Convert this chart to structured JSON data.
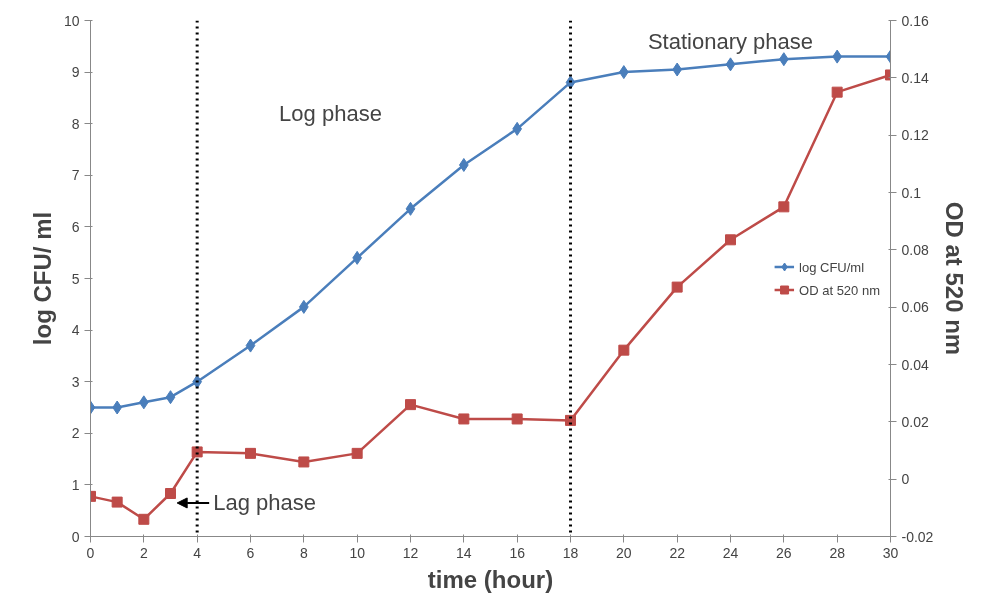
{
  "chart_data": {
    "type": "line",
    "xlabel": "time (hour)",
    "ylabel": "log CFU/ ml",
    "y2label": "OD at 520 nm",
    "x": [
      0,
      1,
      2,
      3,
      4,
      6,
      8,
      10,
      12,
      14,
      16,
      18,
      20,
      22,
      24,
      26,
      28,
      30
    ],
    "series": [
      {
        "name": "log CFU/ml",
        "color": "#4a7ebb",
        "marker": "diamond",
        "values": [
          2.5,
          2.5,
          2.6,
          2.7,
          3.0,
          3.7,
          4.45,
          5.4,
          6.35,
          7.2,
          7.9,
          8.8,
          9.0,
          9.05,
          9.15,
          9.25,
          9.3,
          9.3
        ]
      },
      {
        "name": "OD at 520 nm",
        "color": "#be4b48",
        "marker": "square",
        "axis": "y2",
        "values": [
          -0.006,
          -0.008,
          -0.014,
          -0.005,
          0.0095,
          0.009,
          0.006,
          0.009,
          0.026,
          0.021,
          0.021,
          0.0205,
          0.045,
          0.067,
          0.0835,
          0.095,
          0.135,
          0.141
        ]
      }
    ],
    "xlim": [
      0,
      30
    ],
    "xticks": [
      0,
      2,
      4,
      6,
      8,
      10,
      12,
      14,
      16,
      18,
      20,
      22,
      24,
      26,
      28,
      30
    ],
    "ylim": [
      0,
      10
    ],
    "yticks": [
      0,
      1,
      2,
      3,
      4,
      5,
      6,
      7,
      8,
      9,
      10
    ],
    "y2lim": [
      -0.02,
      0.16
    ],
    "y2ticks": [
      {
        "value": -0.02,
        "label": "-0.02"
      },
      {
        "value": 0,
        "label": "0"
      },
      {
        "value": 0.02,
        "label": "0.02"
      },
      {
        "value": 0.04,
        "label": "0.04"
      },
      {
        "value": 0.06,
        "label": "0.06"
      },
      {
        "value": 0.08,
        "label": "0.08"
      },
      {
        "value": 0.1,
        "label": "0.1"
      },
      {
        "value": 0.12,
        "label": "0.12"
      },
      {
        "value": 0.14,
        "label": "0.14"
      },
      {
        "value": 0.16,
        "label": "0.16"
      }
    ],
    "ref_lines": [
      {
        "axis": "x",
        "value": 4,
        "color": "#000000",
        "line_style": "dotted"
      },
      {
        "axis": "x",
        "value": 18,
        "color": "#000000",
        "line_style": "dotted"
      }
    ],
    "annotations": [
      "Log phase",
      "Stationary phase",
      {
        "text": "Lag phase",
        "x": 3.25,
        "y": 0.65
      }
    ],
    "grid": false,
    "legend": "right"
  }
}
